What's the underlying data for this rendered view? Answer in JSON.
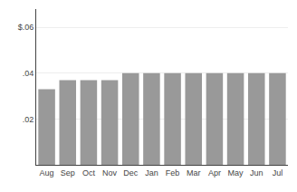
{
  "chart_data": {
    "type": "bar",
    "categories": [
      "Aug",
      "Sep",
      "Oct",
      "Nov",
      "Dec",
      "Jan",
      "Feb",
      "Mar",
      "Apr",
      "May",
      "Jun",
      "Jul"
    ],
    "values": [
      0.033,
      0.037,
      0.037,
      0.037,
      0.04,
      0.04,
      0.04,
      0.04,
      0.04,
      0.04,
      0.04,
      0.04
    ],
    "color": "#999999",
    "ylim": [
      0,
      0.068
    ],
    "yticks": [
      {
        "value": 0.02,
        "label": ".02"
      },
      {
        "value": 0.04,
        "label": ".04"
      },
      {
        "value": 0.06,
        "label": "$.06"
      }
    ],
    "grid": true
  }
}
